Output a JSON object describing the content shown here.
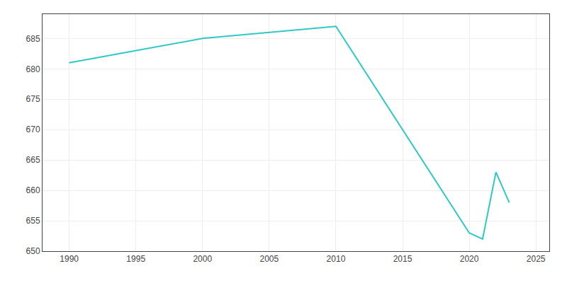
{
  "chart_data": {
    "type": "line",
    "x": [
      1990,
      2000,
      2010,
      2020,
      2021,
      2022,
      2023
    ],
    "values": [
      681,
      685,
      687,
      653,
      652,
      663,
      658
    ],
    "color": "#2EC8C8",
    "xlim": [
      1988,
      2026
    ],
    "ylim": [
      650,
      689
    ],
    "xticks": [
      1990,
      1995,
      2000,
      2005,
      2010,
      2015,
      2020,
      2025
    ],
    "yticks": [
      650,
      655,
      660,
      665,
      670,
      675,
      680,
      685
    ],
    "grid": true
  }
}
